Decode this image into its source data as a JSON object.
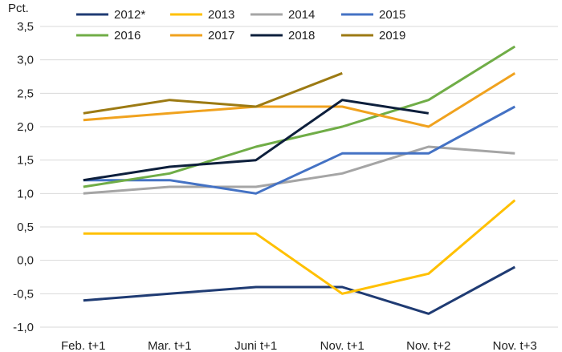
{
  "chart_data": {
    "type": "line",
    "unit_label": "Pct.",
    "categories": [
      "Feb. t+1",
      "Mar. t+1",
      "Juni t+1",
      "Nov. t+1",
      "Nov. t+2",
      "Nov. t+3"
    ],
    "y_ticks": [
      "3,5",
      "3,0",
      "2,5",
      "2,0",
      "1,5",
      "1,0",
      "0,5",
      "0,0",
      "-0,5",
      "-1,0"
    ],
    "ylim": [
      -1.0,
      3.5
    ],
    "grid": true,
    "legend_position": "top",
    "series": [
      {
        "name": "2012*",
        "color": "#1f3b73",
        "values": [
          -0.6,
          -0.5,
          -0.4,
          -0.4,
          -0.8,
          -0.1
        ]
      },
      {
        "name": "2013",
        "color": "#ffc000",
        "values": [
          0.4,
          0.4,
          0.4,
          -0.5,
          -0.2,
          0.9
        ]
      },
      {
        "name": "2014",
        "color": "#a5a5a5",
        "values": [
          1.0,
          1.1,
          1.1,
          1.3,
          1.7,
          1.6
        ]
      },
      {
        "name": "2015",
        "color": "#4472c4",
        "values": [
          1.2,
          1.2,
          1.0,
          1.6,
          1.6,
          2.3
        ]
      },
      {
        "name": "2016",
        "color": "#70ad47",
        "values": [
          1.1,
          1.3,
          1.7,
          2.0,
          2.4,
          3.2
        ]
      },
      {
        "name": "2017",
        "color": "#f0a21e",
        "values": [
          2.1,
          2.2,
          2.3,
          2.3,
          2.0,
          2.8
        ]
      },
      {
        "name": "2018",
        "color": "#0d1f3c",
        "values": [
          1.2,
          1.4,
          1.5,
          2.4,
          2.2,
          null
        ]
      },
      {
        "name": "2019",
        "color": "#9c7a13",
        "values": [
          2.2,
          2.4,
          2.3,
          2.8,
          null,
          null
        ]
      }
    ]
  }
}
